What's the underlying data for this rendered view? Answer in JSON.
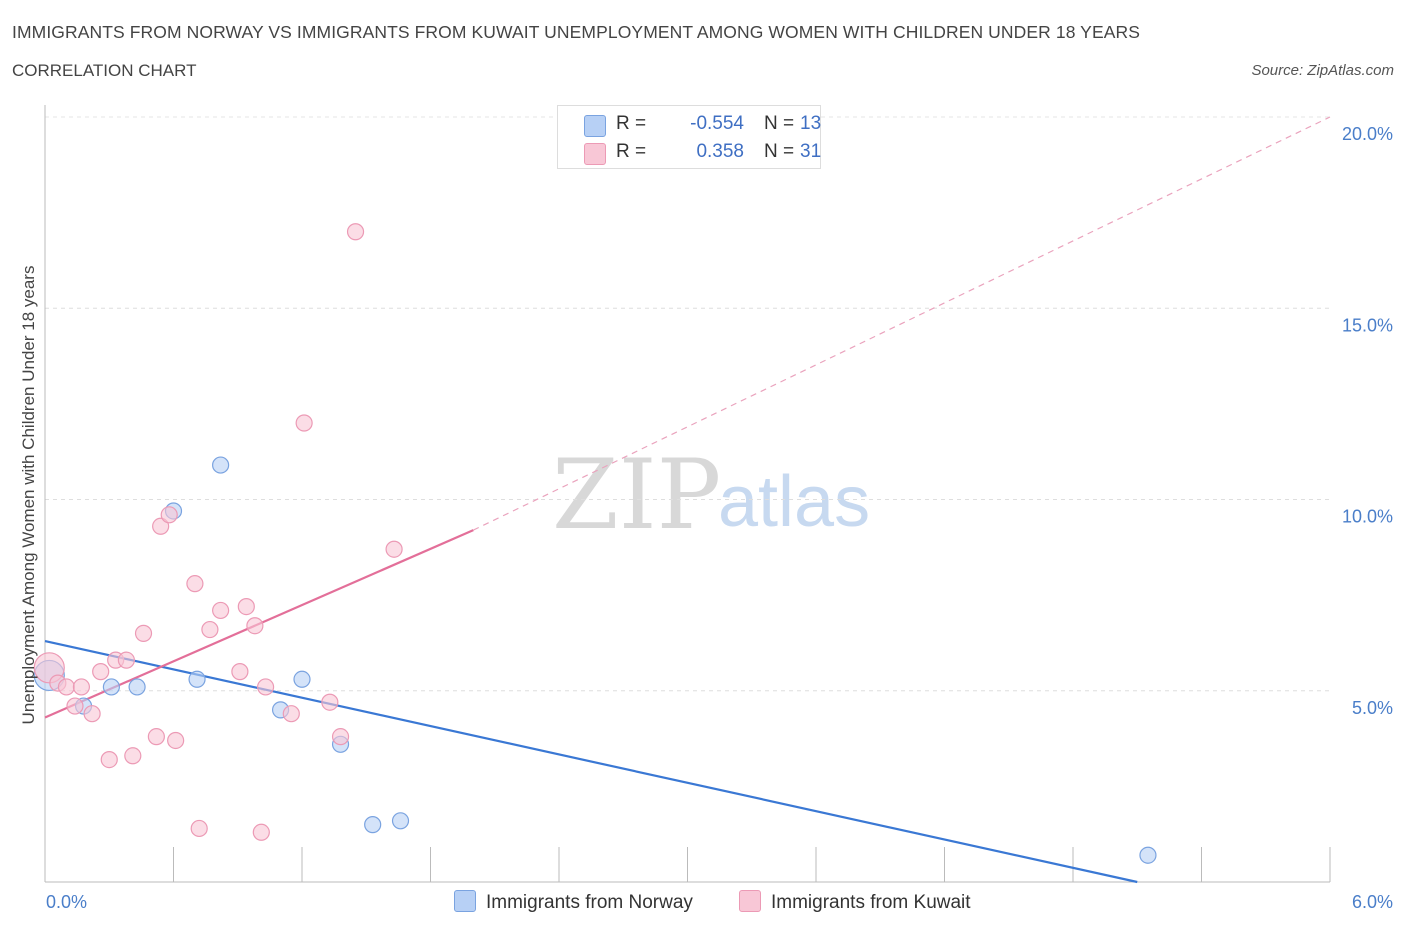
{
  "header": {
    "title": "IMMIGRANTS FROM NORWAY VS IMMIGRANTS FROM KUWAIT UNEMPLOYMENT AMONG WOMEN WITH CHILDREN UNDER 18 YEARS",
    "subtitle": "CORRELATION CHART",
    "source": "Source: ZipAtlas.com"
  },
  "watermark": {
    "zip": "ZIP",
    "atlas": "atlas"
  },
  "legend": {
    "norway": {
      "r_label": "R =",
      "r_value": "-0.554",
      "n_label": "N =",
      "n_value": "13",
      "color": "#b7d0f5",
      "border": "#7aa3e0"
    },
    "kuwait": {
      "r_label": "R =",
      "r_value": "0.358",
      "n_label": "N =",
      "n_value": "31",
      "color": "#f8c7d6",
      "border": "#ec9ab5"
    }
  },
  "bottom_legend": {
    "norway": "Immigrants from Norway",
    "kuwait": "Immigrants from Kuwait"
  },
  "chart_data": {
    "type": "scatter",
    "title": "IMMIGRANTS FROM NORWAY VS IMMIGRANTS FROM KUWAIT UNEMPLOYMENT AMONG WOMEN WITH CHILDREN UNDER 18 YEARS",
    "subtitle": "CORRELATION CHART",
    "xlabel": "",
    "ylabel": "Unemployment Among Women with Children Under 18 years",
    "xlim": [
      0,
      6
    ],
    "ylim": [
      0,
      20
    ],
    "x_tick_labels": [
      "0.0%",
      "6.0%"
    ],
    "y_ticks": [
      5,
      10,
      15,
      20
    ],
    "y_tick_labels": [
      "5.0%",
      "10.0%",
      "15.0%",
      "20.0%"
    ],
    "grid": "horizontal dashed",
    "legend_position": "top-center",
    "series": [
      {
        "name": "Immigrants from Norway",
        "color": "#7aa3e0",
        "fill": "#b7d0f5",
        "points": [
          [
            0.02,
            5.4
          ],
          [
            0.18,
            4.6
          ],
          [
            0.31,
            5.1
          ],
          [
            0.43,
            5.1
          ],
          [
            0.6,
            9.7
          ],
          [
            0.71,
            5.3
          ],
          [
            0.82,
            10.9
          ],
          [
            1.1,
            4.5
          ],
          [
            1.2,
            5.3
          ],
          [
            1.38,
            3.6
          ],
          [
            1.53,
            1.5
          ],
          [
            1.66,
            1.6
          ],
          [
            5.15,
            0.7
          ]
        ],
        "trend": {
          "x": [
            0,
            5.1
          ],
          "y": [
            6.3,
            0
          ],
          "style": "solid",
          "color": "#3a78d4"
        }
      },
      {
        "name": "Immigrants from Kuwait",
        "color": "#ec9ab5",
        "fill": "#f8c7d6",
        "points": [
          [
            0.02,
            5.6
          ],
          [
            0.06,
            5.2
          ],
          [
            0.1,
            5.1
          ],
          [
            0.14,
            4.6
          ],
          [
            0.17,
            5.1
          ],
          [
            0.22,
            4.4
          ],
          [
            0.26,
            5.5
          ],
          [
            0.3,
            3.2
          ],
          [
            0.33,
            5.8
          ],
          [
            0.38,
            5.8
          ],
          [
            0.41,
            3.3
          ],
          [
            0.46,
            6.5
          ],
          [
            0.52,
            3.8
          ],
          [
            0.54,
            9.3
          ],
          [
            0.58,
            9.6
          ],
          [
            0.61,
            3.7
          ],
          [
            0.7,
            7.8
          ],
          [
            0.72,
            1.4
          ],
          [
            0.77,
            6.6
          ],
          [
            0.82,
            7.1
          ],
          [
            0.91,
            5.5
          ],
          [
            0.94,
            7.2
          ],
          [
            0.98,
            6.7
          ],
          [
            1.01,
            1.3
          ],
          [
            1.03,
            5.1
          ],
          [
            1.15,
            4.4
          ],
          [
            1.21,
            12.0
          ],
          [
            1.33,
            4.7
          ],
          [
            1.38,
            3.8
          ],
          [
            1.45,
            17.0
          ],
          [
            1.63,
            8.7
          ]
        ],
        "trend": {
          "x": [
            0,
            2.0
          ],
          "y": [
            4.3,
            9.2
          ],
          "style": "solid",
          "color": "#e36f99"
        },
        "trend_extension": {
          "x": [
            2.0,
            6.0
          ],
          "y": [
            9.2,
            20.0
          ],
          "style": "dashed",
          "color": "#eaa3bd"
        }
      }
    ]
  }
}
